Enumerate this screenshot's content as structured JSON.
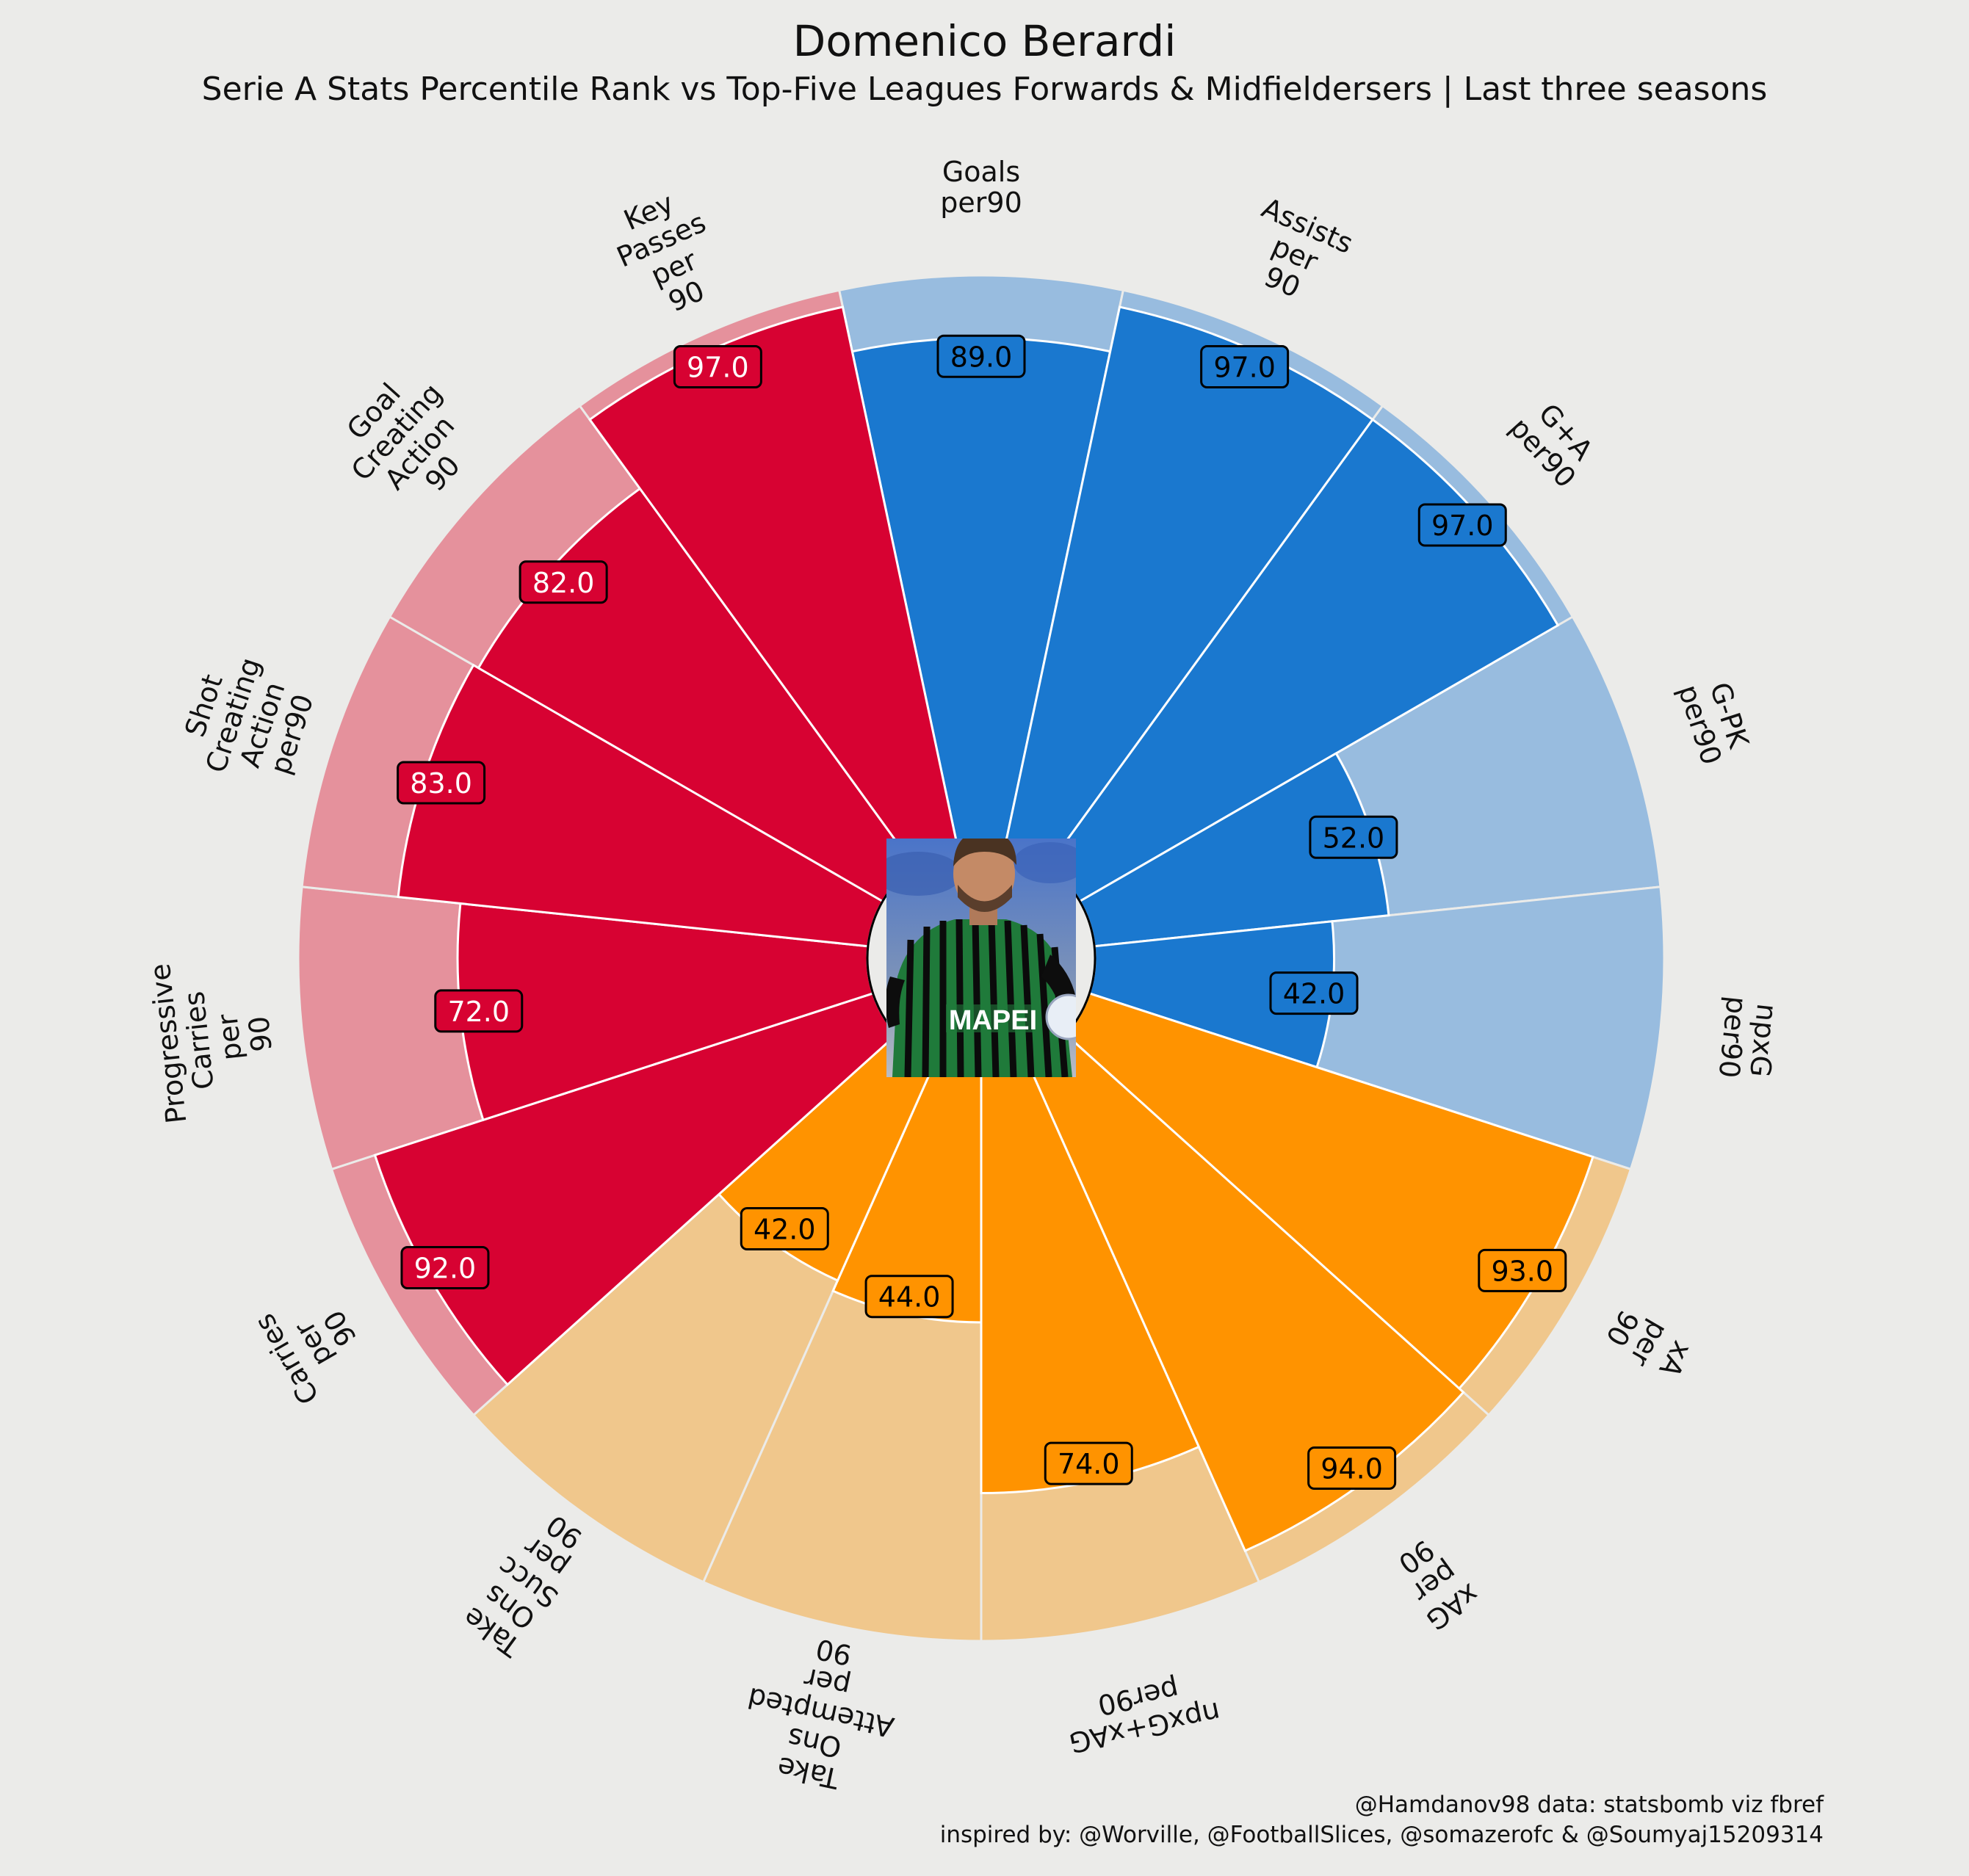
{
  "title": "Domenico Berardi",
  "subtitle": "Serie A Stats Percentile Rank vs Top-Five Leagues Forwards & Midfieldersers | Last three seasons",
  "credits": {
    "line1": "@Hamdanov98 data: statsbomb viz fbref",
    "line2": "inspired by: @Worville, @FootballSlices, @somazerofc & @Soumyaj15209314"
  },
  "center_image": "player-photo",
  "colors": {
    "background": "#ebebe9",
    "attacking": "#1a78cf",
    "attacking_light": "#98bcdf",
    "creation": "#ff9300",
    "creation_light": "#f0c78c",
    "possession": "#d70232",
    "possession_light": "#e5919c"
  },
  "chart_data": {
    "type": "polar-bar",
    "rlim": [
      0,
      100
    ],
    "categories": [
      "Goals\nper90",
      "Assists\nper\n90",
      "G+A\nper90",
      "G-PK\nper90",
      "npxG\nper90",
      "xA\nper\n90",
      "xAG\nper\n90",
      "npxG+xAG\nper90",
      "Take\nOns\nAttempted\nper\n90",
      "Take\nOns\nSucc\nper\n90",
      "Carries\nper\n90",
      "Progressive\nCarries\nper\n90",
      "Shot\nCreating\nAction\nper90",
      "Goal\nCreating\nAction\n90",
      "Key\nPasses\nper\n90"
    ],
    "values": [
      89.0,
      97.0,
      97.0,
      52.0,
      42.0,
      93.0,
      94.0,
      74.0,
      44.0,
      42.0,
      92.0,
      72.0,
      83.0,
      82.0,
      97.0
    ],
    "value_labels": [
      "89.0",
      "97.0",
      "97.0",
      "52.0",
      "42.0",
      "93.0",
      "94.0",
      "74.0",
      "44.0",
      "42.0",
      "92.0",
      "72.0",
      "83.0",
      "82.0",
      "97.0"
    ],
    "groups": [
      "attacking",
      "attacking",
      "attacking",
      "attacking",
      "attacking",
      "creation",
      "creation",
      "creation",
      "creation",
      "creation",
      "possession",
      "possession",
      "possession",
      "possession",
      "possession"
    ],
    "label_text_colors": [
      "#000000",
      "#000000",
      "#000000",
      "#000000",
      "#000000",
      "#000000",
      "#000000",
      "#000000",
      "#000000",
      "#000000",
      "#ffffff",
      "#ffffff",
      "#ffffff",
      "#ffffff",
      "#ffffff"
    ]
  }
}
